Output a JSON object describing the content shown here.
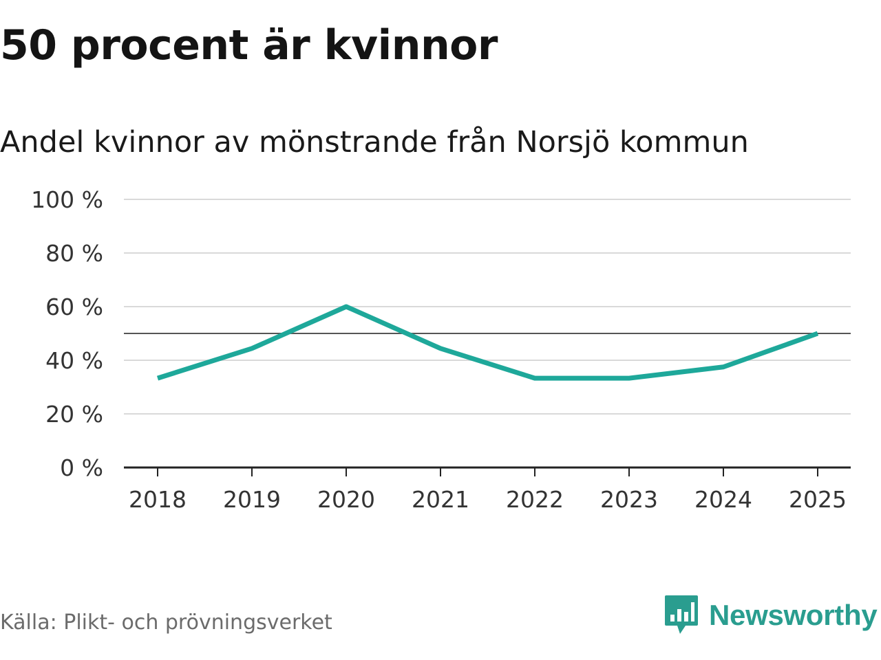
{
  "header": {
    "title": "50 procent är kvinnor",
    "subtitle": "Andel kvinnor av mönstrande från Norsjö kommun"
  },
  "footer": {
    "source": "Källa: Plikt- och prövningsverket",
    "brand": "Newsworthy",
    "brand_icon": "bar-chart-speech-bubble-icon"
  },
  "colors": {
    "line": "#1ea89a",
    "reference": "#555555",
    "grid": "#d9d9d9",
    "axis": "#222222",
    "brand": "#2a9d8f"
  },
  "chart_data": {
    "type": "line",
    "title": "50 procent är kvinnor",
    "subtitle": "Andel kvinnor av mönstrande från Norsjö kommun",
    "x": [
      "2018",
      "2019",
      "2020",
      "2021",
      "2022",
      "2023",
      "2024",
      "2025"
    ],
    "series": [
      {
        "values": [
          33.3,
          44.4,
          60.0,
          44.4,
          33.3,
          33.3,
          37.5,
          50.0
        ]
      }
    ],
    "reference_line": 50,
    "ylim": [
      0,
      100
    ],
    "yticks": [
      0,
      20,
      40,
      60,
      80,
      100
    ],
    "ytick_labels": [
      "0 %",
      "20 %",
      "40 %",
      "60 %",
      "80 %",
      "100 %"
    ],
    "grid": true,
    "legend": "none"
  }
}
